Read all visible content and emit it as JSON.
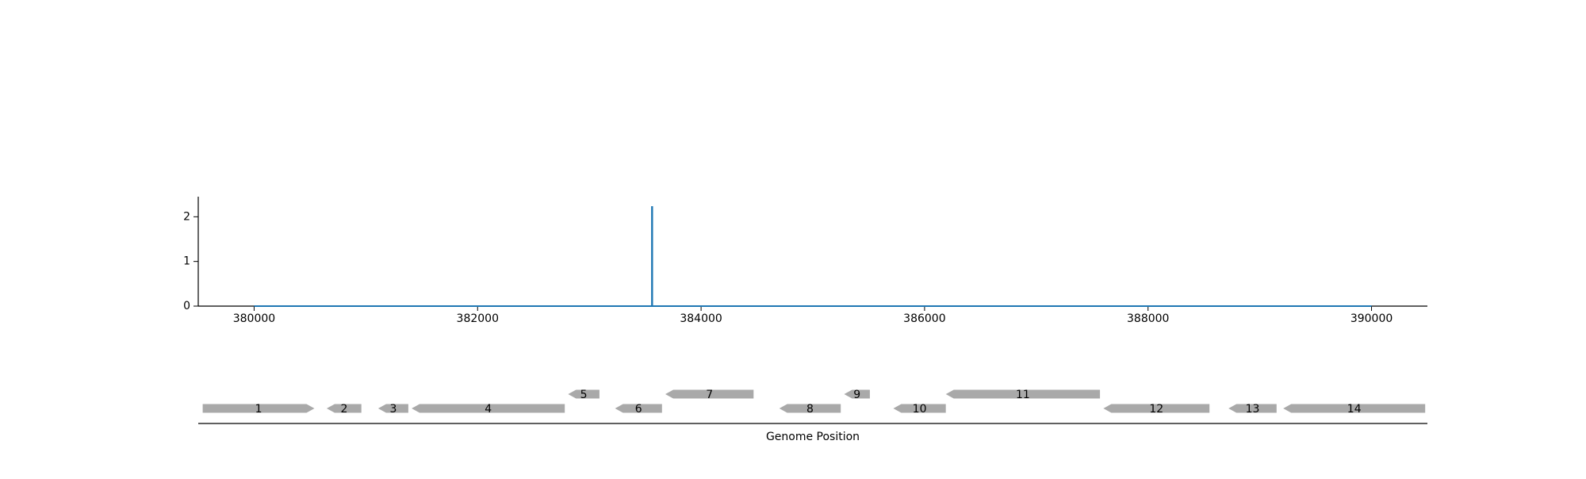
{
  "chart_data": {
    "type": "line",
    "title": "",
    "xlabel": "Genome Position",
    "ylabel": "",
    "xlim": [
      379500,
      390500
    ],
    "ylim": [
      0,
      2.45
    ],
    "grid": false,
    "legend": "none",
    "x_ticks": [
      380000,
      382000,
      384000,
      386000,
      388000,
      390000
    ],
    "y_ticks": [
      0,
      1,
      2
    ],
    "x_tick_labels": [
      "380000",
      "382000",
      "384000",
      "386000",
      "388000",
      "390000"
    ],
    "y_tick_labels": [
      "0",
      "1",
      "2"
    ],
    "series": [
      {
        "name": "signal",
        "color": "#1f77b4",
        "points": [
          [
            380000,
            0
          ],
          [
            383560,
            0
          ],
          [
            383560,
            2.22
          ],
          [
            383563,
            2.22
          ],
          [
            383563,
            0
          ],
          [
            390000,
            0
          ]
        ]
      }
    ],
    "genes": [
      {
        "label": "1",
        "start": 379540,
        "end": 380540,
        "strand": "+",
        "row": 0
      },
      {
        "label": "2",
        "start": 380650,
        "end": 380960,
        "strand": "-",
        "row": 0
      },
      {
        "label": "3",
        "start": 381110,
        "end": 381380,
        "strand": "-",
        "row": 0
      },
      {
        "label": "4",
        "start": 381410,
        "end": 382780,
        "strand": "-",
        "row": 0
      },
      {
        "label": "5",
        "start": 382810,
        "end": 383090,
        "strand": "-",
        "row": 1
      },
      {
        "label": "6",
        "start": 383230,
        "end": 383650,
        "strand": "-",
        "row": 0
      },
      {
        "label": "7",
        "start": 383680,
        "end": 384470,
        "strand": "-",
        "row": 1
      },
      {
        "label": "8",
        "start": 384700,
        "end": 385250,
        "strand": "-",
        "row": 0
      },
      {
        "label": "9",
        "start": 385280,
        "end": 385510,
        "strand": "-",
        "row": 1
      },
      {
        "label": "10",
        "start": 385720,
        "end": 386190,
        "strand": "-",
        "row": 0
      },
      {
        "label": "11",
        "start": 386190,
        "end": 387570,
        "strand": "-",
        "row": 1
      },
      {
        "label": "12",
        "start": 387600,
        "end": 388550,
        "strand": "-",
        "row": 0
      },
      {
        "label": "13",
        "start": 388720,
        "end": 389150,
        "strand": "-",
        "row": 0
      },
      {
        "label": "14",
        "start": 389210,
        "end": 390480,
        "strand": "-",
        "row": 0
      }
    ],
    "gene_color": "#a9a9a9"
  }
}
